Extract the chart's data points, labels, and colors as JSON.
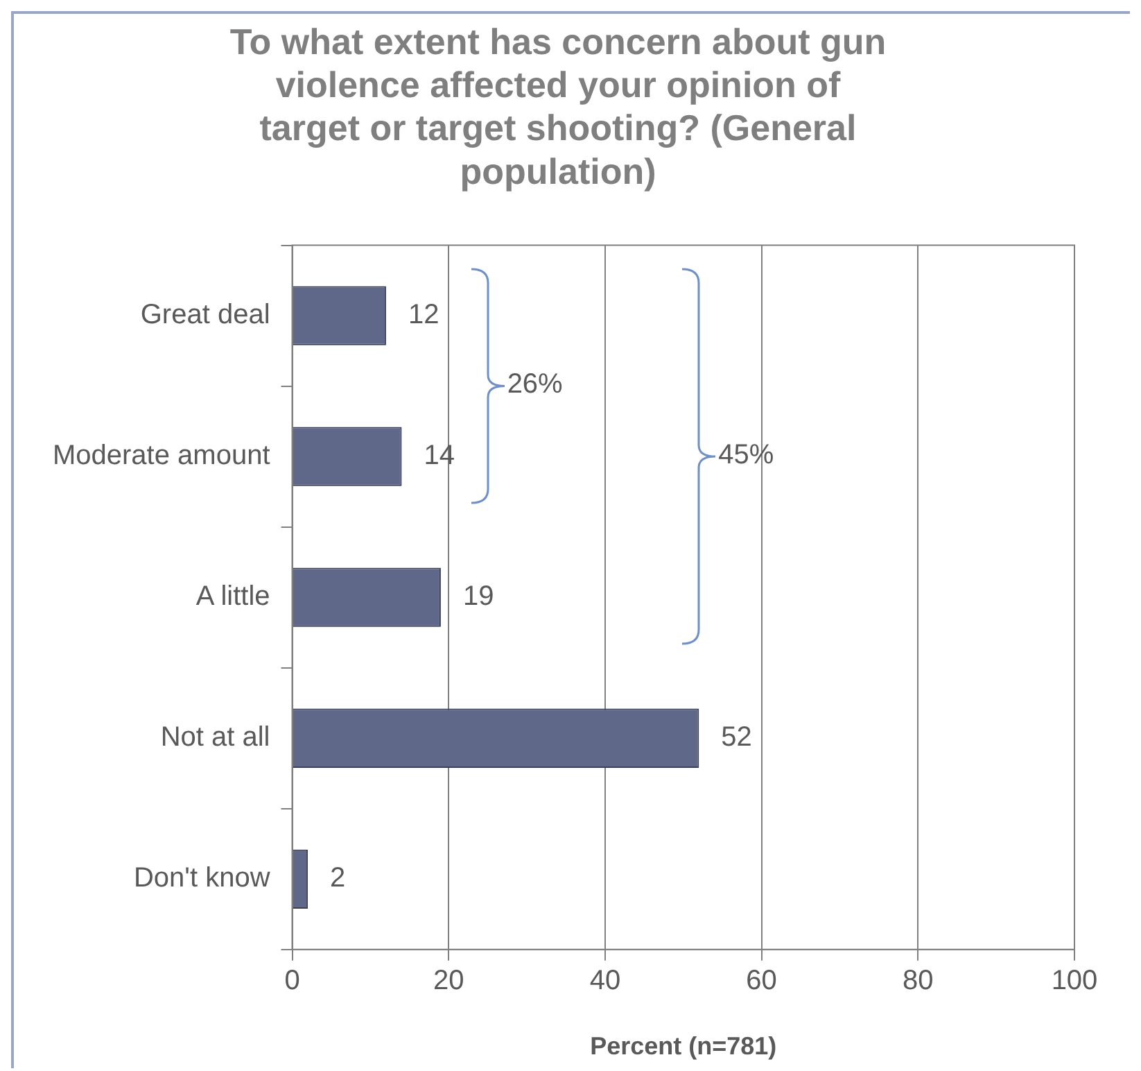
{
  "chart_data": {
    "type": "bar",
    "orientation": "horizontal",
    "title": "To what extent has concern about gun violence affected your opinion of target or target shooting? (General population)",
    "xlabel": "Percent (n=781)",
    "categories": [
      "Great deal",
      "Moderate amount",
      "A little",
      "Not at all",
      "Don't know"
    ],
    "values": [
      12,
      14,
      19,
      52,
      2
    ],
    "color": "#5f6889",
    "xlim": [
      0,
      100
    ],
    "xticks": [
      0,
      20,
      40,
      60,
      80,
      100
    ],
    "grid": "x",
    "legend": false,
    "data_labels": true,
    "annotations": [
      "26%",
      "45%"
    ]
  }
}
